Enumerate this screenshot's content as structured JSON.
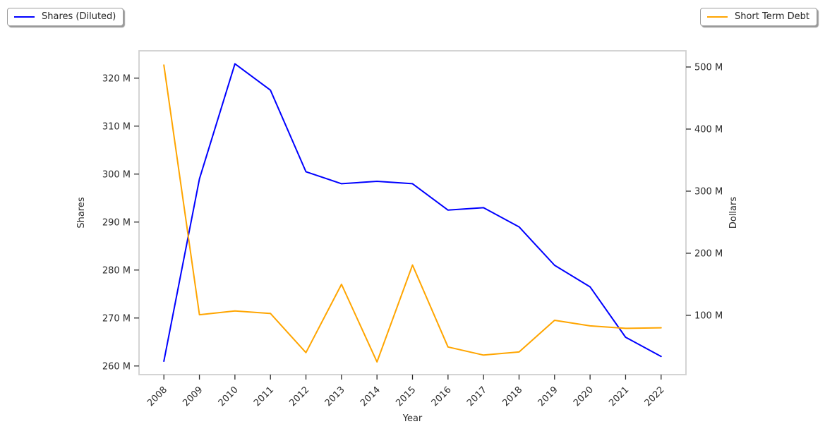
{
  "chart_data": {
    "type": "line",
    "title": "",
    "xlabel": "Year",
    "grid": false,
    "x": [
      2008,
      2009,
      2010,
      2011,
      2012,
      2013,
      2014,
      2015,
      2016,
      2017,
      2018,
      2019,
      2020,
      2021,
      2022
    ],
    "x_ticks": {
      "labels": [
        "2008",
        "2009",
        "2010",
        "2011",
        "2012",
        "2013",
        "2014",
        "2015",
        "2016",
        "2017",
        "2018",
        "2019",
        "2020",
        "2021",
        "2022"
      ],
      "rotation": 45
    },
    "xlim": [
      2007.3,
      2022.7
    ],
    "series": [
      {
        "name": "Shares (Diluted)",
        "axis": "left",
        "color": "#0000ff",
        "unit": "M",
        "values": [
          261,
          299,
          323,
          317.5,
          300.5,
          298,
          298.5,
          298,
          292.5,
          293,
          289,
          281,
          276.5,
          266,
          262
        ]
      },
      {
        "name": "Short Term Debt",
        "axis": "right",
        "color": "#ffa500",
        "unit": "M",
        "values": [
          503,
          101,
          107,
          103,
          40,
          150,
          25,
          181,
          49,
          36,
          41,
          92,
          83,
          79,
          80
        ]
      }
    ],
    "axes": {
      "left": {
        "label": "Shares",
        "ticks": [
          260,
          270,
          280,
          290,
          300,
          310,
          320
        ],
        "tick_labels": [
          "260 M",
          "270 M",
          "280 M",
          "290 M",
          "300 M",
          "310 M",
          "320 M"
        ],
        "ylim": [
          258.2,
          325.7
        ]
      },
      "right": {
        "label": "Dollars",
        "ticks": [
          100,
          200,
          300,
          400,
          500
        ],
        "tick_labels": [
          "100 M",
          "200 M",
          "300 M",
          "400 M",
          "500 M"
        ],
        "ylim": [
          4.5,
          526.1
        ]
      }
    },
    "legend": {
      "left": {
        "label": "Shares (Diluted)",
        "color": "#0000ff"
      },
      "right": {
        "label": "Short Term Debt",
        "color": "#ffa500"
      }
    }
  },
  "colors": {
    "spine": "#d0d0d0",
    "tick": "#2b2b2b",
    "text": "#2b2b2b"
  }
}
